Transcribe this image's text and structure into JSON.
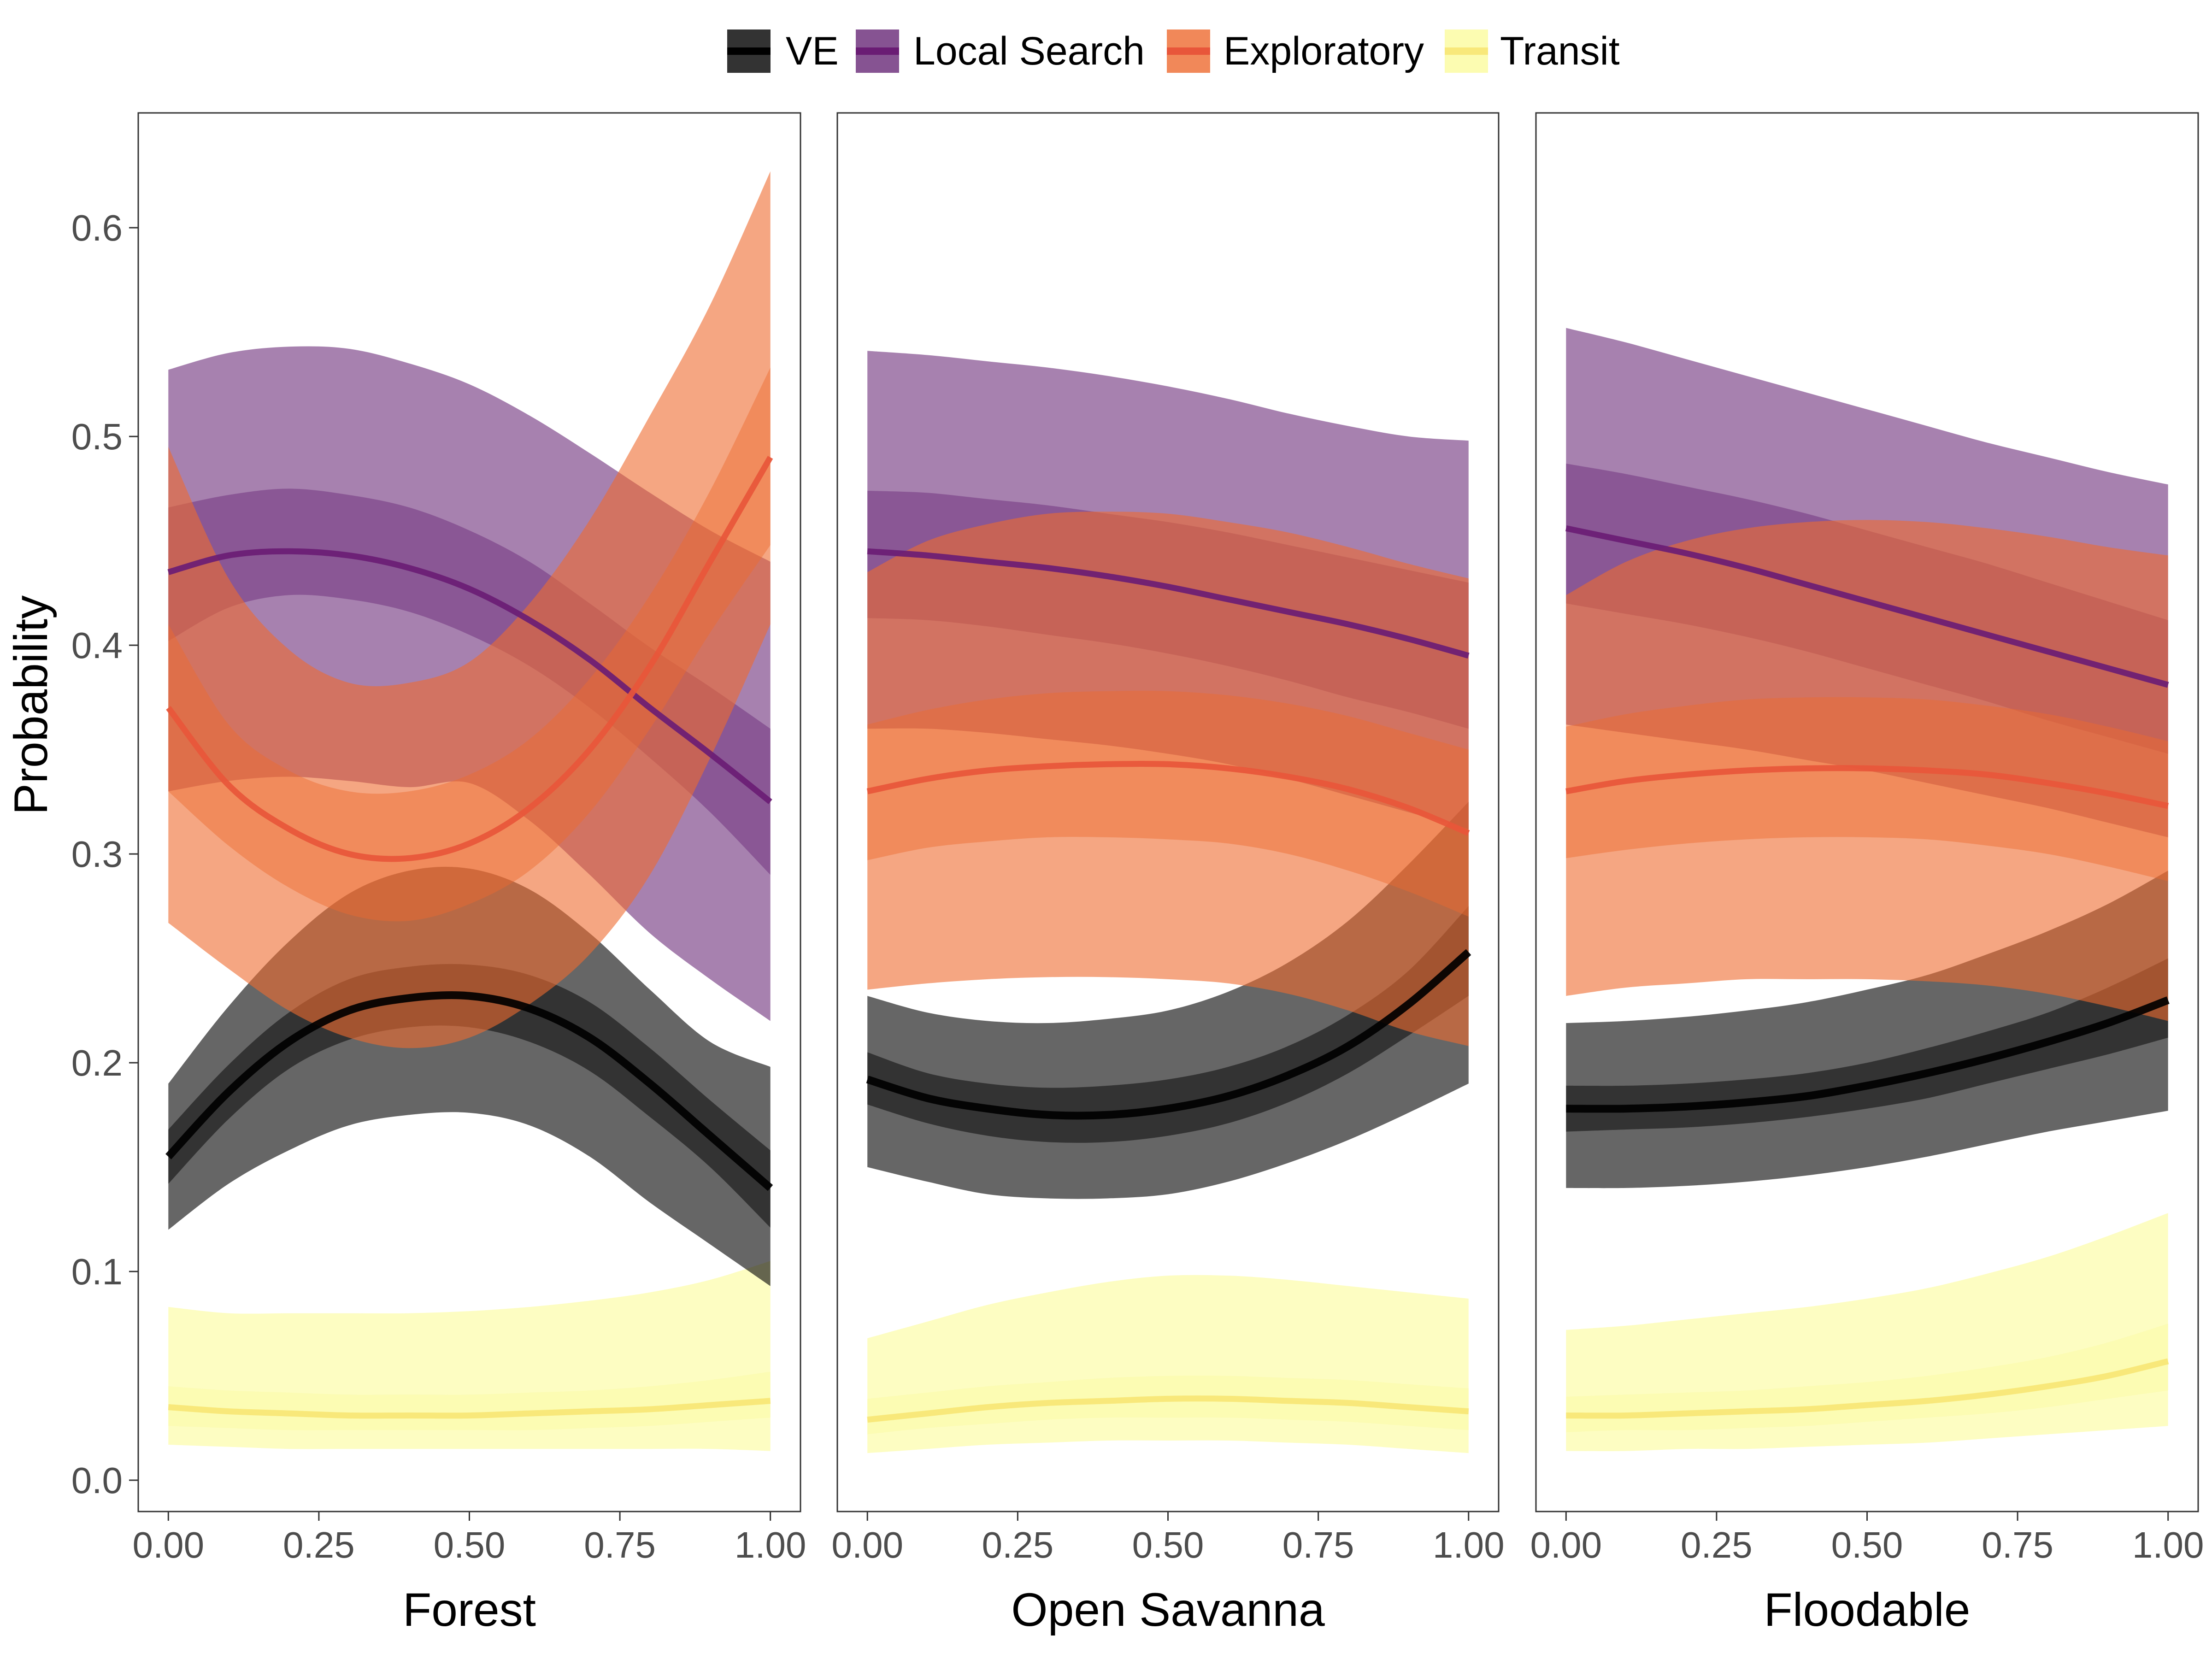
{
  "chart_data": {
    "type": "line",
    "y_axis": {
      "label": "Probability",
      "ylim": [
        -0.015,
        0.655
      ],
      "ticks": [
        0.0,
        0.1,
        0.2,
        0.3,
        0.4,
        0.5,
        0.6
      ],
      "tick_labels": [
        "0.0",
        "0.1",
        "0.2",
        "0.3",
        "0.4",
        "0.5",
        "0.6"
      ]
    },
    "x_axis": {
      "xlim": [
        -0.05,
        1.05
      ],
      "ticks": [
        0.0,
        0.25,
        0.5,
        0.75,
        1.0
      ],
      "tick_labels": [
        "0.00",
        "0.25",
        "0.50",
        "0.75",
        "1.00"
      ]
    },
    "legend": {
      "position": "top",
      "entries": [
        {
          "name": "VE",
          "color": "#000004"
        },
        {
          "name": "Local Search",
          "color": "#721f81"
        },
        {
          "name": "Exploratory",
          "color": "#f1605d"
        },
        {
          "name": "Transit",
          "color": "#fcfdbf"
        }
      ]
    },
    "series_colors": {
      "VE": {
        "line": "#000000",
        "band": "#000000"
      },
      "Local Search": {
        "line": "#6a1c74",
        "band": "#5e1a6e"
      },
      "Exploratory": {
        "line": "#e8563a",
        "band": "#ee6a2f"
      },
      "Transit": {
        "line": "#f8e87a",
        "band": "#fcfca8"
      }
    },
    "x": [
      0.0,
      0.1,
      0.2,
      0.3,
      0.4,
      0.5,
      0.6,
      0.7,
      0.8,
      0.9,
      1.0
    ],
    "panels": [
      {
        "title": "Forest",
        "series": [
          {
            "name": "VE",
            "values": [
              0.155,
              0.186,
              0.21,
              0.225,
              0.231,
              0.232,
              0.226,
              0.212,
              0.19,
              0.165,
              0.14
            ],
            "inner_lo": [
              0.142,
              0.173,
              0.197,
              0.211,
              0.217,
              0.217,
              0.21,
              0.196,
              0.174,
              0.15,
              0.121
            ],
            "inner_hi": [
              0.168,
              0.199,
              0.224,
              0.24,
              0.246,
              0.247,
              0.242,
              0.229,
              0.207,
              0.182,
              0.158
            ],
            "outer_lo": [
              0.12,
              0.142,
              0.158,
              0.17,
              0.175,
              0.176,
              0.17,
              0.155,
              0.133,
              0.113,
              0.093
            ],
            "outer_hi": [
              0.19,
              0.227,
              0.258,
              0.281,
              0.292,
              0.293,
              0.283,
              0.262,
              0.235,
              0.21,
              0.198
            ]
          },
          {
            "name": "Local Search",
            "values": [
              0.435,
              0.443,
              0.445,
              0.443,
              0.437,
              0.427,
              0.412,
              0.393,
              0.37,
              0.348,
              0.325
            ],
            "inner_lo": [
              0.402,
              0.418,
              0.424,
              0.422,
              0.416,
              0.405,
              0.39,
              0.37,
              0.346,
              0.32,
              0.29
            ],
            "inner_hi": [
              0.466,
              0.472,
              0.475,
              0.472,
              0.466,
              0.455,
              0.44,
              0.42,
              0.399,
              0.38,
              0.36
            ],
            "outer_lo": [
              0.33,
              0.335,
              0.337,
              0.335,
              0.332,
              0.334,
              0.316,
              0.29,
              0.262,
              0.24,
              0.22
            ],
            "outer_hi": [
              0.532,
              0.54,
              0.543,
              0.542,
              0.535,
              0.525,
              0.51,
              0.492,
              0.473,
              0.455,
              0.44
            ]
          },
          {
            "name": "Exploratory",
            "values": [
              0.37,
              0.333,
              0.312,
              0.3,
              0.298,
              0.305,
              0.322,
              0.35,
              0.39,
              0.44,
              0.49
            ],
            "inner_lo": [
              0.33,
              0.304,
              0.284,
              0.271,
              0.268,
              0.276,
              0.292,
              0.32,
              0.36,
              0.406,
              0.448
            ],
            "inner_hi": [
              0.41,
              0.362,
              0.34,
              0.33,
              0.33,
              0.338,
              0.355,
              0.384,
              0.424,
              0.474,
              0.533
            ],
            "outer_lo": [
              0.267,
              0.245,
              0.225,
              0.212,
              0.207,
              0.212,
              0.228,
              0.252,
              0.29,
              0.346,
              0.41
            ],
            "outer_hi": [
              0.495,
              0.432,
              0.398,
              0.382,
              0.382,
              0.392,
              0.42,
              0.46,
              0.51,
              0.563,
              0.627
            ]
          },
          {
            "name": "Transit",
            "values": [
              0.035,
              0.033,
              0.032,
              0.031,
              0.031,
              0.031,
              0.032,
              0.033,
              0.034,
              0.036,
              0.038
            ],
            "inner_lo": [
              0.026,
              0.025,
              0.024,
              0.024,
              0.024,
              0.024,
              0.024,
              0.025,
              0.026,
              0.028,
              0.03
            ],
            "inner_hi": [
              0.045,
              0.043,
              0.042,
              0.041,
              0.041,
              0.041,
              0.042,
              0.043,
              0.045,
              0.048,
              0.052
            ],
            "outer_lo": [
              0.017,
              0.016,
              0.015,
              0.015,
              0.015,
              0.015,
              0.015,
              0.015,
              0.015,
              0.015,
              0.014
            ],
            "outer_hi": [
              0.083,
              0.08,
              0.08,
              0.08,
              0.08,
              0.081,
              0.083,
              0.086,
              0.09,
              0.096,
              0.105
            ]
          }
        ]
      },
      {
        "title": "Open Savanna",
        "series": [
          {
            "name": "VE",
            "values": [
              0.192,
              0.183,
              0.178,
              0.175,
              0.175,
              0.178,
              0.184,
              0.194,
              0.208,
              0.228,
              0.253
            ],
            "inner_lo": [
              0.18,
              0.171,
              0.165,
              0.162,
              0.162,
              0.165,
              0.171,
              0.181,
              0.195,
              0.213,
              0.232
            ],
            "inner_hi": [
              0.205,
              0.195,
              0.19,
              0.188,
              0.189,
              0.192,
              0.198,
              0.208,
              0.223,
              0.244,
              0.275
            ],
            "outer_lo": [
              0.15,
              0.143,
              0.137,
              0.135,
              0.135,
              0.137,
              0.143,
              0.152,
              0.163,
              0.176,
              0.19
            ],
            "outer_hi": [
              0.232,
              0.224,
              0.22,
              0.219,
              0.221,
              0.225,
              0.234,
              0.248,
              0.268,
              0.295,
              0.325
            ]
          },
          {
            "name": "Local Search",
            "values": [
              0.445,
              0.443,
              0.44,
              0.437,
              0.433,
              0.428,
              0.422,
              0.416,
              0.41,
              0.403,
              0.395
            ],
            "inner_lo": [
              0.413,
              0.412,
              0.409,
              0.405,
              0.401,
              0.396,
              0.39,
              0.383,
              0.375,
              0.368,
              0.36
            ],
            "inner_hi": [
              0.474,
              0.473,
              0.47,
              0.467,
              0.463,
              0.459,
              0.454,
              0.448,
              0.442,
              0.436,
              0.43
            ],
            "outer_lo": [
              0.36,
              0.36,
              0.358,
              0.355,
              0.352,
              0.348,
              0.343,
              0.336,
              0.328,
              0.32,
              0.312
            ],
            "outer_hi": [
              0.541,
              0.539,
              0.536,
              0.533,
              0.529,
              0.524,
              0.518,
              0.511,
              0.505,
              0.5,
              0.498
            ]
          },
          {
            "name": "Exploratory",
            "values": [
              0.33,
              0.336,
              0.34,
              0.342,
              0.343,
              0.343,
              0.341,
              0.337,
              0.331,
              0.322,
              0.31
            ],
            "inner_lo": [
              0.297,
              0.303,
              0.306,
              0.308,
              0.308,
              0.307,
              0.305,
              0.3,
              0.292,
              0.282,
              0.27
            ],
            "inner_hi": [
              0.362,
              0.369,
              0.374,
              0.377,
              0.378,
              0.378,
              0.376,
              0.372,
              0.366,
              0.358,
              0.35
            ],
            "outer_lo": [
              0.235,
              0.238,
              0.24,
              0.241,
              0.241,
              0.24,
              0.238,
              0.233,
              0.225,
              0.215,
              0.208
            ],
            "outer_hi": [
              0.435,
              0.45,
              0.458,
              0.463,
              0.464,
              0.463,
              0.459,
              0.454,
              0.447,
              0.439,
              0.432
            ]
          },
          {
            "name": "Transit",
            "values": [
              0.029,
              0.032,
              0.035,
              0.037,
              0.038,
              0.039,
              0.039,
              0.038,
              0.037,
              0.035,
              0.033
            ],
            "inner_lo": [
              0.022,
              0.025,
              0.027,
              0.029,
              0.03,
              0.03,
              0.03,
              0.029,
              0.028,
              0.026,
              0.024
            ],
            "inner_hi": [
              0.039,
              0.042,
              0.045,
              0.047,
              0.049,
              0.05,
              0.05,
              0.049,
              0.048,
              0.046,
              0.044
            ],
            "outer_lo": [
              0.013,
              0.015,
              0.017,
              0.018,
              0.019,
              0.019,
              0.019,
              0.018,
              0.017,
              0.015,
              0.013
            ],
            "outer_hi": [
              0.068,
              0.076,
              0.084,
              0.09,
              0.095,
              0.098,
              0.098,
              0.096,
              0.093,
              0.09,
              0.087
            ]
          }
        ]
      },
      {
        "title": "Floodable",
        "series": [
          {
            "name": "VE",
            "values": [
              0.178,
              0.178,
              0.179,
              0.181,
              0.184,
              0.189,
              0.195,
              0.202,
              0.21,
              0.219,
              0.23
            ],
            "inner_lo": [
              0.167,
              0.168,
              0.169,
              0.171,
              0.174,
              0.178,
              0.183,
              0.19,
              0.197,
              0.204,
              0.212
            ],
            "inner_hi": [
              0.189,
              0.189,
              0.19,
              0.192,
              0.195,
              0.2,
              0.207,
              0.215,
              0.224,
              0.236,
              0.25
            ],
            "outer_lo": [
              0.14,
              0.14,
              0.141,
              0.143,
              0.146,
              0.15,
              0.155,
              0.161,
              0.167,
              0.172,
              0.177
            ],
            "outer_hi": [
              0.219,
              0.22,
              0.222,
              0.225,
              0.229,
              0.235,
              0.242,
              0.252,
              0.263,
              0.276,
              0.292
            ]
          },
          {
            "name": "Local Search",
            "values": [
              0.456,
              0.45,
              0.444,
              0.437,
              0.429,
              0.421,
              0.413,
              0.405,
              0.397,
              0.389,
              0.381
            ],
            "inner_lo": [
              0.42,
              0.415,
              0.41,
              0.404,
              0.397,
              0.389,
              0.381,
              0.373,
              0.364,
              0.356,
              0.348
            ],
            "inner_hi": [
              0.487,
              0.482,
              0.476,
              0.47,
              0.463,
              0.455,
              0.447,
              0.439,
              0.43,
              0.421,
              0.412
            ],
            "outer_lo": [
              0.362,
              0.358,
              0.354,
              0.35,
              0.345,
              0.34,
              0.334,
              0.328,
              0.322,
              0.315,
              0.308
            ],
            "outer_hi": [
              0.552,
              0.545,
              0.537,
              0.529,
              0.521,
              0.513,
              0.505,
              0.497,
              0.49,
              0.483,
              0.477
            ]
          },
          {
            "name": "Exploratory",
            "values": [
              0.33,
              0.335,
              0.338,
              0.34,
              0.341,
              0.341,
              0.34,
              0.338,
              0.334,
              0.329,
              0.323
            ],
            "inner_lo": [
              0.298,
              0.302,
              0.305,
              0.307,
              0.308,
              0.308,
              0.307,
              0.304,
              0.3,
              0.294,
              0.287
            ],
            "inner_hi": [
              0.361,
              0.367,
              0.371,
              0.374,
              0.375,
              0.375,
              0.374,
              0.371,
              0.367,
              0.361,
              0.354
            ],
            "outer_lo": [
              0.232,
              0.236,
              0.238,
              0.24,
              0.24,
              0.24,
              0.239,
              0.237,
              0.233,
              0.227,
              0.22
            ],
            "outer_hi": [
              0.424,
              0.44,
              0.45,
              0.456,
              0.459,
              0.46,
              0.459,
              0.456,
              0.452,
              0.447,
              0.443
            ]
          },
          {
            "name": "Transit",
            "values": [
              0.031,
              0.031,
              0.032,
              0.033,
              0.034,
              0.036,
              0.038,
              0.041,
              0.045,
              0.05,
              0.057
            ],
            "inner_lo": [
              0.023,
              0.024,
              0.024,
              0.025,
              0.026,
              0.028,
              0.03,
              0.032,
              0.035,
              0.039,
              0.043
            ],
            "inner_hi": [
              0.04,
              0.041,
              0.042,
              0.043,
              0.045,
              0.047,
              0.05,
              0.054,
              0.059,
              0.066,
              0.075
            ],
            "outer_lo": [
              0.014,
              0.014,
              0.015,
              0.015,
              0.016,
              0.017,
              0.018,
              0.02,
              0.022,
              0.024,
              0.026
            ],
            "outer_hi": [
              0.072,
              0.074,
              0.077,
              0.08,
              0.083,
              0.087,
              0.092,
              0.099,
              0.107,
              0.117,
              0.128
            ]
          }
        ]
      }
    ]
  }
}
